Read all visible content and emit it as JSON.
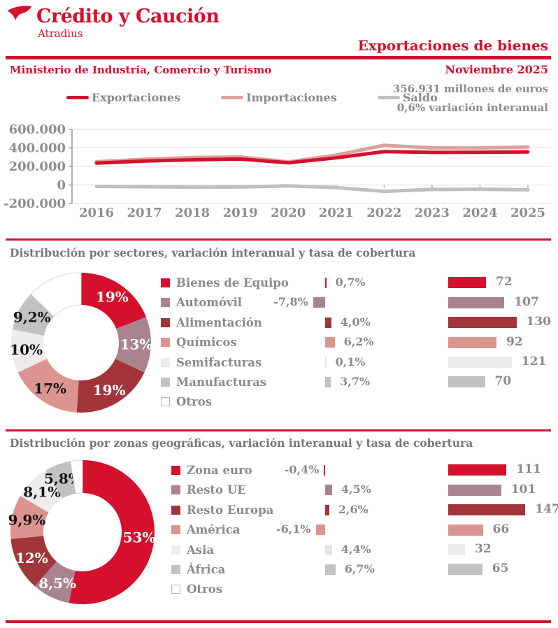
{
  "brand": {
    "name": "Crédito y Caución",
    "sub": "Atradius"
  },
  "header": {
    "title": "Exportaciones de bienes",
    "source": "Ministerio de Industria, Comercio y Turismo",
    "period": "Noviembre 2025",
    "stat_line1": "356.931 millones de euros",
    "stat_line2": "0,6% variación interanual"
  },
  "colors": {
    "brand_red": "#d5102d",
    "mauve": "#a9838f",
    "dark_red": "#a23539",
    "pink": "#dc9490",
    "light_gray": "#edebeb",
    "mid_gray": "#c3c2c2",
    "text_gray": "#8a8a8a",
    "axis_gray": "#8e8e8e"
  },
  "chart_data": [
    {
      "id": "trade-lines",
      "type": "line",
      "x": [
        2016,
        2017,
        2018,
        2019,
        2020,
        2021,
        2022,
        2023,
        2024,
        2025
      ],
      "ylim": [
        -200000,
        600000
      ],
      "yticks": [
        600000,
        400000,
        200000,
        0,
        -200000
      ],
      "ytick_labels": [
        "600.000",
        "400.000",
        "200.000",
        "0",
        "-200.000"
      ],
      "grid": true,
      "legend_position": "top",
      "series": [
        {
          "name": "Exportaciones",
          "color": "#d5102d",
          "values": [
            236000,
            259000,
            272000,
            280000,
            239000,
            293000,
            360000,
            352000,
            353000,
            356931
          ]
        },
        {
          "name": "Importaciones",
          "color": "#dda19c",
          "values": [
            251000,
            278000,
            296000,
            302000,
            249000,
            322000,
            429000,
            400000,
            399000,
            409000
          ]
        },
        {
          "name": "Saldo",
          "color": "#c0c0c0",
          "values": [
            -15000,
            -19000,
            -24000,
            -22000,
            -10000,
            -29000,
            -69000,
            -48000,
            -46000,
            -52000
          ]
        }
      ]
    },
    {
      "id": "sectors",
      "type": "pie",
      "title": "Distribución por sectores,  variación interanual y tasa de cobertura",
      "slices": [
        {
          "label": "Bienes de Equipo",
          "pct": 19,
          "pct_display": "19%",
          "label_color": "#ffffff",
          "color": "#d5102d",
          "variacion": 0.7,
          "variacion_display": "0,7%",
          "cobertura": 72,
          "cobertura_display": "72"
        },
        {
          "label": "Automóvil",
          "pct": 13,
          "pct_display": "13%",
          "label_color": "#ffffff",
          "color": "#a9838f",
          "variacion": -7.8,
          "variacion_display": "-7,8%",
          "cobertura": 107,
          "cobertura_display": "107"
        },
        {
          "label": "Alimentación",
          "pct": 19,
          "pct_display": "19%",
          "label_color": "#ffffff",
          "color": "#a23539",
          "variacion": 4.0,
          "variacion_display": "4,0%",
          "cobertura": 130,
          "cobertura_display": "130"
        },
        {
          "label": "Químicos",
          "pct": 17,
          "pct_display": "17%",
          "label_color": "#141414",
          "color": "#dc9490",
          "variacion": 6.2,
          "variacion_display": "6,2%",
          "cobertura": 92,
          "cobertura_display": "92"
        },
        {
          "label": "Semifacturas",
          "pct": 10,
          "pct_display": "10%",
          "label_color": "#141414",
          "color": "#edebeb",
          "variacion": 0.1,
          "variacion_display": "0,1%",
          "cobertura": 121,
          "cobertura_display": "121"
        },
        {
          "label": "Manufacturas",
          "pct": 9.2,
          "pct_display": "9,2%",
          "label_color": "#141414",
          "color": "#c3c2c2",
          "variacion": 3.7,
          "variacion_display": "3,7%",
          "cobertura": 70,
          "cobertura_display": "70"
        },
        {
          "label": "Otros",
          "pct": 12.8,
          "pct_display": null,
          "label_color": null,
          "color": "#ffffff",
          "variacion": null,
          "variacion_display": null,
          "cobertura": null,
          "cobertura_display": null
        }
      ]
    },
    {
      "id": "zones",
      "type": "pie",
      "title": "Distribución por zonas geográficas, variación interanual y tasa de cobertura",
      "slices": [
        {
          "label": "Zona euro",
          "pct": 53,
          "pct_display": "53%",
          "label_color": "#ffffff",
          "color": "#d5102d",
          "variacion": -0.4,
          "variacion_display": "-0,4%",
          "cobertura": 111,
          "cobertura_display": "111"
        },
        {
          "label": "Resto UE",
          "pct": 8.5,
          "pct_display": "8,5%",
          "label_color": "#ffffff",
          "color": "#a9838f",
          "variacion": 4.5,
          "variacion_display": "4,5%",
          "cobertura": 101,
          "cobertura_display": "101"
        },
        {
          "label": "Resto Europa",
          "pct": 12,
          "pct_display": "12%",
          "label_color": "#ffffff",
          "color": "#a23539",
          "variacion": 2.6,
          "variacion_display": "2,6%",
          "cobertura": 147,
          "cobertura_display": "147"
        },
        {
          "label": "América",
          "pct": 9.9,
          "pct_display": "9,9%",
          "label_color": "#141414",
          "color": "#dc9490",
          "variacion": -6.1,
          "variacion_display": "-6,1%",
          "cobertura": 66,
          "cobertura_display": "66"
        },
        {
          "label": "Asia",
          "pct": 8.1,
          "pct_display": "8,1%",
          "label_color": "#141414",
          "color": "#edebeb",
          "variacion": 4.4,
          "variacion_display": "4,4%",
          "cobertura": 32,
          "cobertura_display": "32"
        },
        {
          "label": "África",
          "pct": 5.8,
          "pct_display": "5,8%",
          "label_color": "#141414",
          "color": "#c3c2c2",
          "variacion": 6.7,
          "variacion_display": "6,7%",
          "cobertura": 65,
          "cobertura_display": "65"
        },
        {
          "label": "Otros",
          "pct": 2.7,
          "pct_display": null,
          "label_color": null,
          "color": "#ffffff",
          "variacion": null,
          "variacion_display": null,
          "cobertura": null,
          "cobertura_display": null
        }
      ]
    }
  ]
}
